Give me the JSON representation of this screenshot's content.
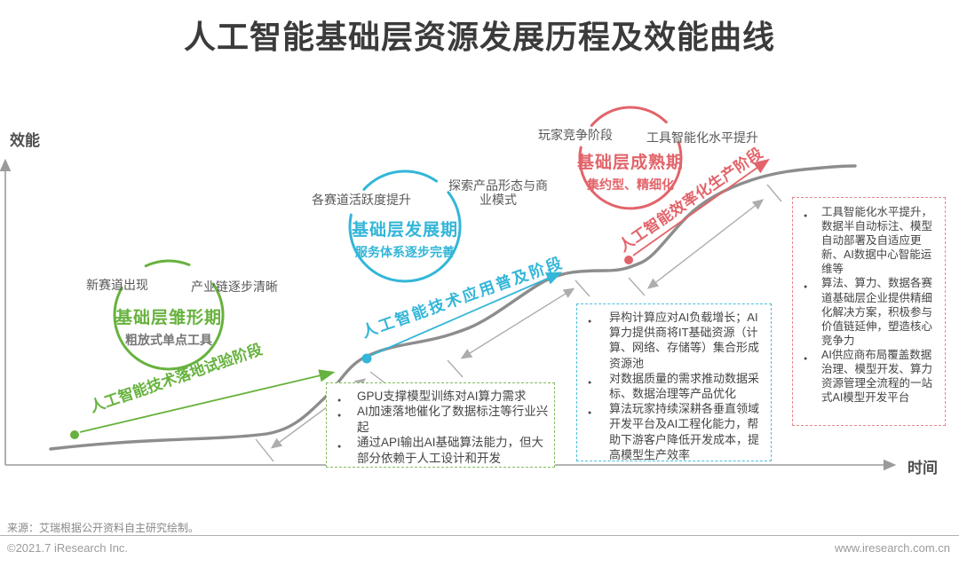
{
  "title": "人工智能基础层资源发展历程及效能曲线",
  "axes": {
    "y_label": "效能",
    "x_label": "时间"
  },
  "colors": {
    "green": "#67b23e",
    "blue": "#33b6d8",
    "red": "#e2646a",
    "curve": "#8d8d8d",
    "axis": "#9a9a9a"
  },
  "stages": {
    "green": {
      "label_left": "新赛道出现",
      "label_right": "产业链逐步清晰",
      "circle_title": "基础层雏形期",
      "circle_subtitle": "粗放式单点工具",
      "phase_label": "人工智能技术落地试验阶段"
    },
    "blue": {
      "label_left": "各赛道活跃度提升",
      "label_right": "探索产品形态与商业模式",
      "circle_title": "基础层发展期",
      "circle_subtitle": "服务体系逐步完善",
      "phase_label": "人工智能技术应用普及阶段"
    },
    "red": {
      "label_left": "玩家竞争阶段",
      "label_right": "工具智能化水平提升",
      "circle_title": "基础层成熟期",
      "circle_subtitle": "集约型、精细化",
      "phase_label": "人工智能效率化生产阶段"
    }
  },
  "boxes": {
    "green": {
      "items": [
        "GPU支撑模型训练对AI算力需求",
        "AI加速落地催化了数据标注等行业兴起",
        "通过API输出AI基础算法能力，但大部分依赖于人工设计和开发"
      ]
    },
    "blue": {
      "items": [
        "异构计算应对AI负载增长；AI算力提供商将IT基础资源（计算、网络、存储等）集合形成资源池",
        "对数据质量的需求推动数据采标、数据治理等产品优化",
        "算法玩家持续深耕各垂直领域开发平台及AI工程化能力，帮助下游客户降低开发成本，提高模型生产效率"
      ]
    },
    "red": {
      "items": [
        "工具智能化水平提升，数据半自动标注、模型自动部署及自适应更新、AI数据中心智能运维等",
        "算法、算力、数据各赛道基础层企业提供精细化解决方案，积极参与价值链延伸，塑造核心竞争力",
        "AI供应商布局覆盖数据治理、模型开发、算力资源管理全流程的一站式AI模型开发平台"
      ]
    }
  },
  "footer": {
    "source": "来源：艾瑞根据公开资料自主研究绘制。",
    "copyright": "©2021.7 iResearch Inc.",
    "website": "www.iresearch.com.cn"
  }
}
